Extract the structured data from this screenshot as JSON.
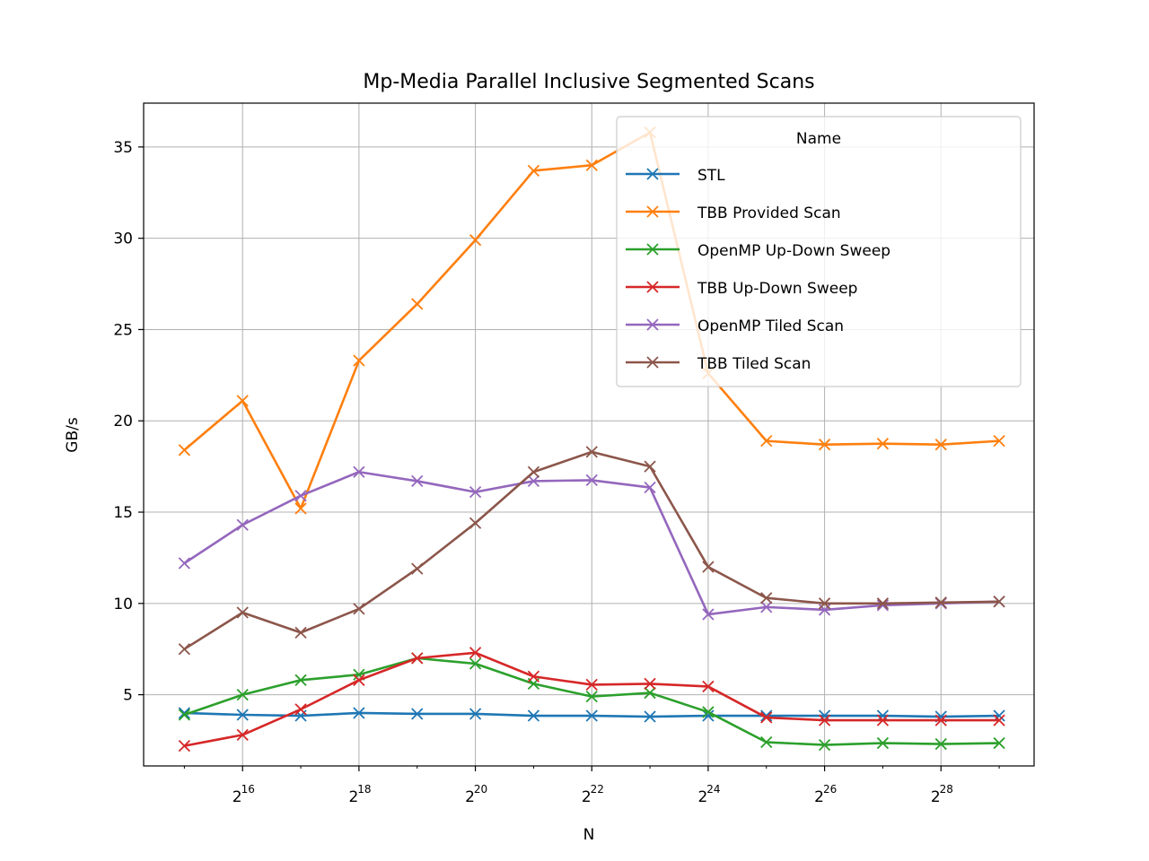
{
  "chart_data": {
    "type": "line",
    "title": "Mp-Media Parallel Inclusive Segmented Scans",
    "xlabel": "N",
    "ylabel": "GB/s",
    "x_scale": "log2",
    "x": [
      15,
      16,
      17,
      18,
      19,
      20,
      21,
      22,
      23,
      24,
      25,
      26,
      27,
      28,
      29
    ],
    "x_tick_exponents": [
      16,
      18,
      20,
      22,
      24,
      26,
      28
    ],
    "x_tick_base": "2",
    "xlim": [
      14.3,
      29.6
    ],
    "ylim": [
      1.1,
      37.4
    ],
    "y_ticks": [
      5,
      10,
      15,
      20,
      25,
      30,
      35
    ],
    "grid": true,
    "marker": "x",
    "legend": {
      "title": "Name",
      "placement": "upper right"
    },
    "series": [
      {
        "name": "STL",
        "color": "#1f77b4",
        "values": [
          4.0,
          3.9,
          3.85,
          4.0,
          3.95,
          3.95,
          3.85,
          3.85,
          3.8,
          3.85,
          3.85,
          3.85,
          3.85,
          3.8,
          3.85
        ]
      },
      {
        "name": "TBB Provided Scan",
        "color": "#ff7f0e",
        "values": [
          18.4,
          21.1,
          15.2,
          23.3,
          26.4,
          29.9,
          33.7,
          34.0,
          35.8,
          22.6,
          18.9,
          18.7,
          18.75,
          18.7,
          18.9
        ]
      },
      {
        "name": "OpenMP Up-Down Sweep",
        "color": "#2ca02c",
        "values": [
          3.9,
          5.0,
          5.8,
          6.1,
          7.0,
          6.7,
          5.6,
          4.9,
          5.1,
          4.05,
          2.4,
          2.25,
          2.35,
          2.3,
          2.35
        ]
      },
      {
        "name": "TBB Up-Down Sweep",
        "color": "#d62728",
        "values": [
          2.2,
          2.8,
          4.2,
          5.8,
          7.0,
          7.3,
          6.0,
          5.55,
          5.6,
          5.45,
          3.75,
          3.6,
          3.6,
          3.6,
          3.6
        ]
      },
      {
        "name": "OpenMP Tiled Scan",
        "color": "#9467bd",
        "values": [
          12.2,
          14.3,
          15.9,
          17.2,
          16.7,
          16.1,
          16.7,
          16.75,
          16.35,
          9.4,
          9.8,
          9.65,
          9.9,
          10.0,
          10.1
        ]
      },
      {
        "name": "TBB Tiled Scan",
        "color": "#8c564b",
        "values": [
          7.5,
          9.5,
          8.4,
          9.7,
          11.9,
          14.4,
          17.2,
          18.3,
          17.5,
          12.0,
          10.3,
          10.0,
          10.0,
          10.05,
          10.1
        ]
      }
    ]
  }
}
